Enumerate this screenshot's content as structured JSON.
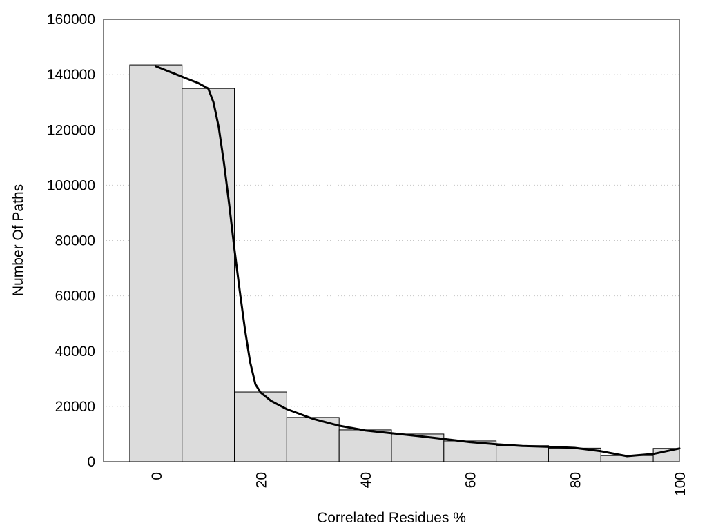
{
  "chart_data": {
    "type": "bar",
    "title": "",
    "xlabel": "Correlated Residues %",
    "ylabel": "Number Of Paths",
    "xlim": [
      -10,
      100
    ],
    "ylim": [
      0,
      160000
    ],
    "x_ticks": [
      "0",
      "20",
      "40",
      "60",
      "80",
      "100"
    ],
    "y_ticks": [
      "0",
      "20000",
      "40000",
      "60000",
      "80000",
      "100000",
      "120000",
      "140000",
      "160000"
    ],
    "grid": "horizontal dotted",
    "bin_width": 10,
    "bars": [
      {
        "x": 0,
        "value": 143500
      },
      {
        "x": 10,
        "value": 135000
      },
      {
        "x": 20,
        "value": 25200
      },
      {
        "x": 30,
        "value": 16000
      },
      {
        "x": 40,
        "value": 11500
      },
      {
        "x": 50,
        "value": 10000
      },
      {
        "x": 60,
        "value": 7500
      },
      {
        "x": 70,
        "value": 5800
      },
      {
        "x": 80,
        "value": 4900
      },
      {
        "x": 90,
        "value": 2200
      },
      {
        "x": 100,
        "value": 4800
      }
    ],
    "curve": {
      "type": "line",
      "x": [
        0,
        4,
        8,
        10,
        11,
        12,
        13,
        14,
        15,
        16,
        17,
        18,
        19,
        20,
        22,
        25,
        30,
        35,
        40,
        45,
        50,
        55,
        60,
        65,
        70,
        75,
        80,
        85,
        90,
        95,
        100
      ],
      "y": [
        143000,
        140000,
        137000,
        135000,
        130000,
        121000,
        108000,
        93000,
        77000,
        62000,
        48000,
        36000,
        28000,
        25000,
        22000,
        19000,
        15500,
        13000,
        11300,
        10300,
        9300,
        8200,
        7100,
        6300,
        5700,
        5400,
        5000,
        3800,
        2000,
        2800,
        4800
      ]
    },
    "colors": {
      "bar_fill": "#dcdcdc",
      "bar_stroke": "#000000",
      "curve": "#000000",
      "grid": "#c8c8c8"
    }
  }
}
